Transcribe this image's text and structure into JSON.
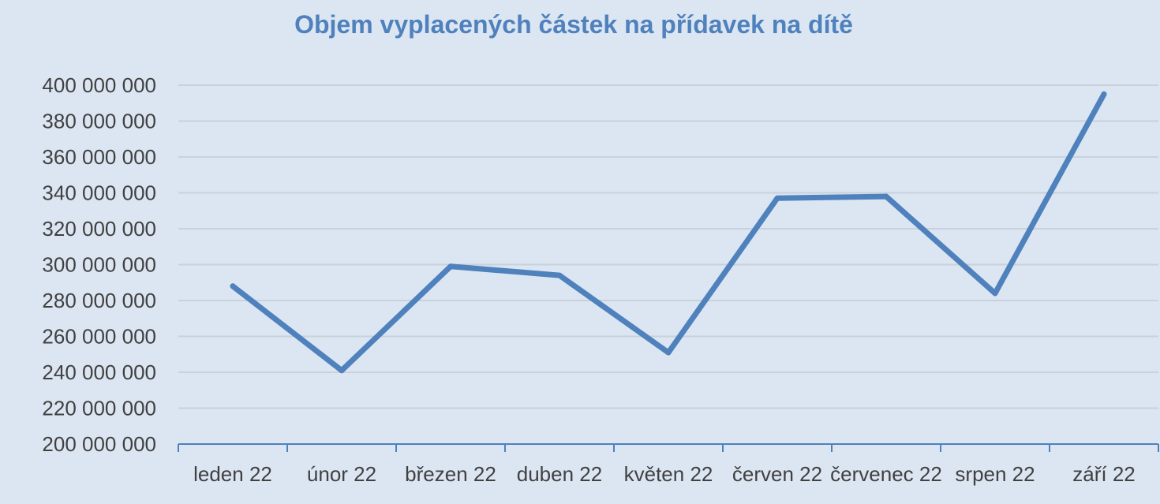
{
  "chart_data": {
    "type": "line",
    "title": "Objem vyplacených částek na přídavek na dítě",
    "xlabel": "",
    "ylabel": "",
    "categories": [
      "leden 22",
      "únor 22",
      "březen 22",
      "duben 22",
      "květen 22",
      "červen 22",
      "červenec 22",
      "srpen 22",
      "září 22"
    ],
    "series": [
      {
        "values": [
          288000000,
          241000000,
          299000000,
          294000000,
          251000000,
          337000000,
          338000000,
          284000000,
          395000000
        ]
      }
    ],
    "ylim": [
      200000000,
      400000000
    ],
    "yticks": [
      "200 000 000",
      "220 000 000",
      "240 000 000",
      "260 000 000",
      "280 000 000",
      "300 000 000",
      "320 000 000",
      "340 000 000",
      "360 000 000",
      "380 000 000",
      "400 000 000"
    ],
    "ytick_values": [
      200000000,
      220000000,
      240000000,
      260000000,
      280000000,
      300000000,
      320000000,
      340000000,
      360000000,
      380000000,
      400000000
    ],
    "grid": true,
    "legend": "none",
    "colors": {
      "series": "#4f81bd",
      "title": "#4f81bd",
      "background": "#dce6f2",
      "grid": "#c9d1da",
      "tick_text": "#404040"
    }
  }
}
